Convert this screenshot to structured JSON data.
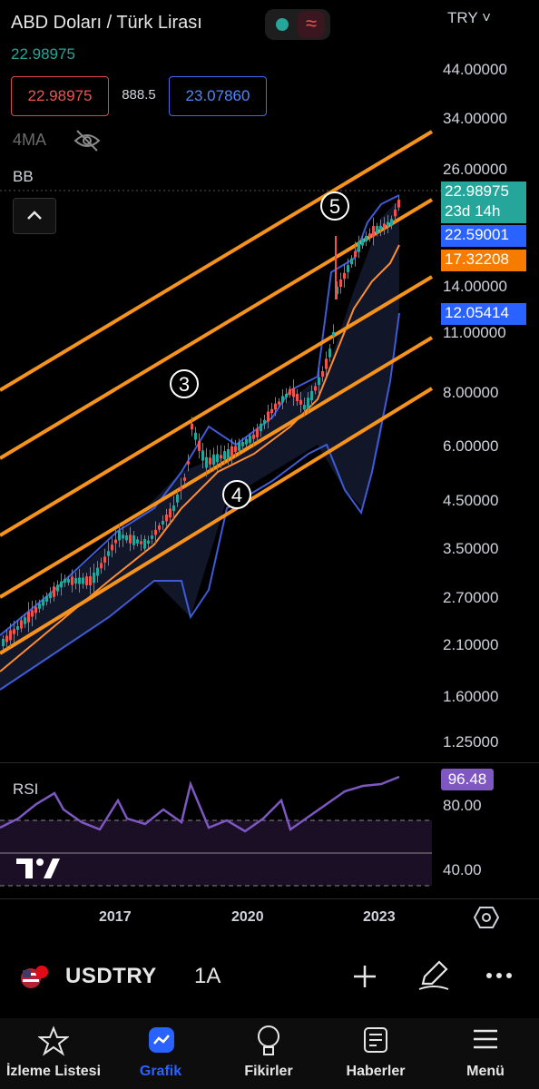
{
  "header": {
    "title": "ABD Doları / Türk Lirası",
    "last_price": "22.98975",
    "currency": "TRY ˅"
  },
  "quote": {
    "bid": "22.98975",
    "spread": "888.5",
    "ask": "23.07860"
  },
  "indicators": {
    "ma": "4MA",
    "bb": "BB",
    "rsi": "RSI",
    "rsi_value": "96.48"
  },
  "price_axis": {
    "ticks": [
      "44.00000",
      "34.00000",
      "26.00000",
      "14.00000",
      "11.00000",
      "8.00000",
      "6.00000",
      "4.50000",
      "3.50000",
      "2.70000",
      "2.10000",
      "1.60000",
      "1.25000"
    ],
    "rsi_ticks": [
      "80.00",
      "40.00"
    ]
  },
  "price_labels": {
    "current": "22.98975",
    "countdown": "23d 14h",
    "bb_upper": "22.59001",
    "ma": "17.32208",
    "bb_lower": "12.05414"
  },
  "wave_labels": [
    "5",
    "3",
    "4"
  ],
  "time_axis": [
    "2017",
    "2020",
    "2023"
  ],
  "symbol_bar": {
    "symbol": "USDTRY",
    "interval": "1A"
  },
  "nav": [
    {
      "label": "İzleme Listesi"
    },
    {
      "label": "Grafik"
    },
    {
      "label": "Fikirler"
    },
    {
      "label": "Haberler"
    },
    {
      "label": "Menü"
    }
  ],
  "colors": {
    "up": "#26a69a",
    "down": "#ef5350",
    "orange": "#f7931a",
    "bb": "#2962ff",
    "rsi": "#7e57c2",
    "accent": "#2962ff"
  },
  "icons": [
    "eye-off-icon",
    "chevron-up-icon",
    "tradingview-logo-icon",
    "settings-hex-icon",
    "flag-icon",
    "plus-icon",
    "pen-icon",
    "more-icon",
    "star-icon",
    "chart-icon",
    "bulb-icon",
    "news-icon",
    "menu-icon"
  ]
}
